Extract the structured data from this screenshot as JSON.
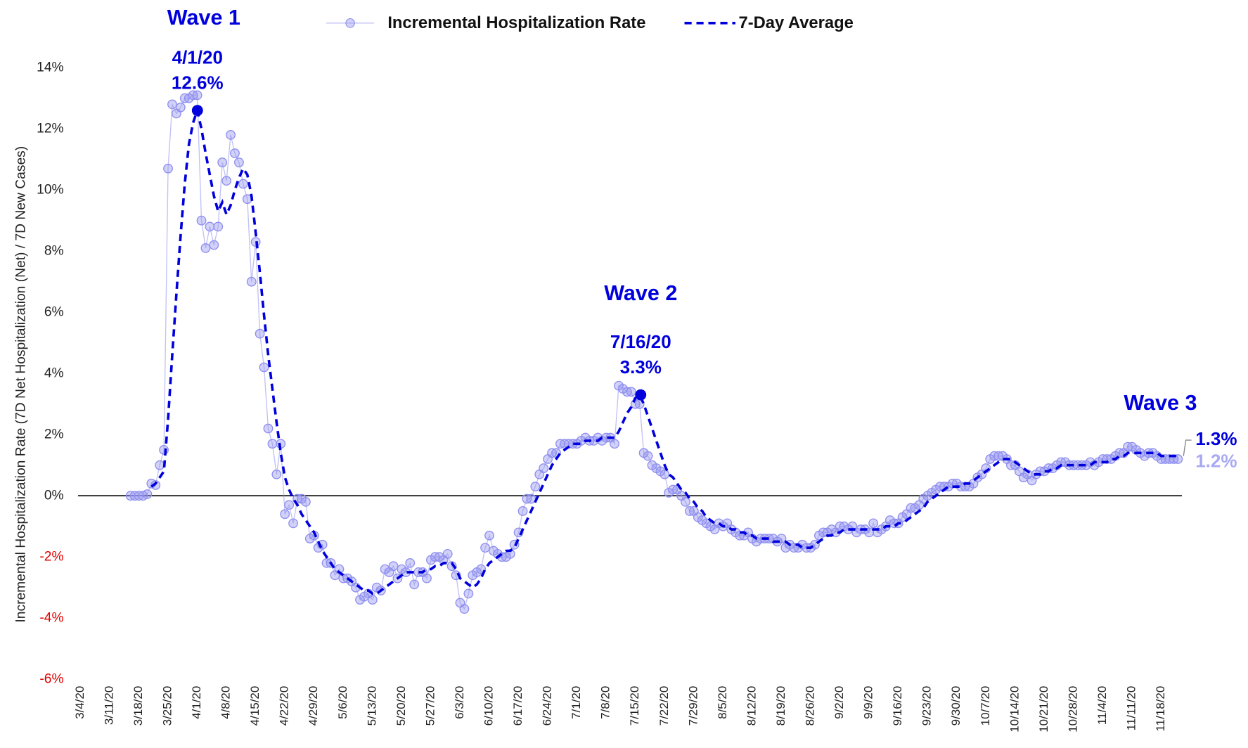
{
  "chart_data": {
    "type": "line",
    "y_label": "Incremental Hospitalization Rate (7D Net Hospitalization (Net) / 7D New Cases)",
    "wave_labels": [
      "Wave 1",
      "Wave 2",
      "Wave 3"
    ],
    "callouts": [
      {
        "date": "4/1/20",
        "value": 12.6,
        "label": "12.6%"
      },
      {
        "date": "7/16/20",
        "value": 3.3,
        "label": "3.3%"
      }
    ],
    "end_labels": [
      {
        "value": 1.3,
        "label": "1.3%",
        "color": "#0000dd"
      },
      {
        "value": 1.2,
        "label": "1.2%",
        "color": "#a9a9f5"
      }
    ],
    "ylim": [
      -6,
      14
    ],
    "yticks": [
      {
        "value": -6,
        "label": "-6%"
      },
      {
        "value": -4,
        "label": "-4%"
      },
      {
        "value": -2,
        "label": "-2%"
      },
      {
        "value": 0,
        "label": "0%"
      },
      {
        "value": 2,
        "label": "2%"
      },
      {
        "value": 4,
        "label": "4%"
      },
      {
        "value": 6,
        "label": "6%"
      },
      {
        "value": 8,
        "label": "8%"
      },
      {
        "value": 10,
        "label": "10%"
      },
      {
        "value": 12,
        "label": "12%"
      },
      {
        "value": 14,
        "label": "14%"
      }
    ],
    "negative_tick_color": "#e00000",
    "grid": false,
    "legend": "top",
    "categories": [
      "3/4/20",
      null,
      null,
      null,
      null,
      null,
      null,
      "3/11/20",
      null,
      null,
      null,
      null,
      null,
      null,
      "3/18/20",
      null,
      null,
      null,
      null,
      null,
      null,
      "3/25/20",
      null,
      null,
      null,
      null,
      null,
      null,
      "4/1/20",
      null,
      null,
      null,
      null,
      null,
      null,
      "4/8/20",
      null,
      null,
      null,
      null,
      null,
      null,
      "4/15/20",
      null,
      null,
      null,
      null,
      null,
      null,
      "4/22/20",
      null,
      null,
      null,
      null,
      null,
      null,
      "4/29/20",
      null,
      null,
      null,
      null,
      null,
      null,
      "5/6/20",
      null,
      null,
      null,
      null,
      null,
      null,
      "5/13/20",
      null,
      null,
      null,
      null,
      null,
      null,
      "5/20/20",
      null,
      null,
      null,
      null,
      null,
      null,
      "5/27/20",
      null,
      null,
      null,
      null,
      null,
      null,
      "6/3/20",
      null,
      null,
      null,
      null,
      null,
      null,
      "6/10/20",
      null,
      null,
      null,
      null,
      null,
      null,
      "6/17/20",
      null,
      null,
      null,
      null,
      null,
      null,
      "6/24/20",
      null,
      null,
      null,
      null,
      null,
      null,
      "7/1/20",
      null,
      null,
      null,
      null,
      null,
      null,
      "7/8/20",
      null,
      null,
      null,
      null,
      null,
      null,
      "7/15/20",
      null,
      null,
      null,
      null,
      null,
      null,
      "7/22/20",
      null,
      null,
      null,
      null,
      null,
      null,
      "7/29/20",
      null,
      null,
      null,
      null,
      null,
      null,
      "8/5/20",
      null,
      null,
      null,
      null,
      null,
      null,
      "8/12/20",
      null,
      null,
      null,
      null,
      null,
      null,
      "8/19/20",
      null,
      null,
      null,
      null,
      null,
      null,
      "8/26/20",
      null,
      null,
      null,
      null,
      null,
      null,
      "9/2/20",
      null,
      null,
      null,
      null,
      null,
      null,
      "9/9/20",
      null,
      null,
      null,
      null,
      null,
      null,
      "9/16/20",
      null,
      null,
      null,
      null,
      null,
      null,
      "9/23/20",
      null,
      null,
      null,
      null,
      null,
      null,
      "9/30/20",
      null,
      null,
      null,
      null,
      null,
      null,
      "10/7/20",
      null,
      null,
      null,
      null,
      null,
      null,
      "10/14/20",
      null,
      null,
      null,
      null,
      null,
      null,
      "10/21/20",
      null,
      null,
      null,
      null,
      null,
      null,
      "10/28/20",
      null,
      null,
      null,
      null,
      null,
      null,
      "11/4/20",
      null,
      null,
      null,
      null,
      null,
      null,
      "11/11/20",
      null,
      null,
      null,
      null,
      null,
      null,
      "11/18/20",
      null,
      null,
      null,
      null
    ],
    "series": [
      {
        "name": "Incremental Hospitalization Rate",
        "color": "#8f8fef",
        "style": "markers",
        "values": [
          null,
          null,
          null,
          null,
          null,
          null,
          null,
          null,
          null,
          null,
          null,
          null,
          0,
          0,
          0,
          0,
          0.05,
          0.4,
          0.35,
          1.0,
          1.5,
          10.7,
          12.8,
          12.5,
          12.7,
          13.0,
          13.0,
          13.1,
          13.1,
          9.0,
          8.1,
          8.8,
          8.2,
          8.8,
          10.9,
          10.3,
          11.8,
          11.2,
          10.9,
          10.2,
          9.7,
          7.0,
          8.3,
          5.3,
          4.2,
          2.2,
          1.7,
          0.7,
          1.7,
          -0.6,
          -0.3,
          -0.9,
          -0.1,
          -0.1,
          -0.2,
          -1.4,
          -1.3,
          -1.7,
          -1.6,
          -2.2,
          -2.2,
          -2.6,
          -2.4,
          -2.7,
          -2.7,
          -2.8,
          -3.0,
          -3.4,
          -3.3,
          -3.2,
          -3.4,
          -3.0,
          -3.1,
          -2.4,
          -2.5,
          -2.3,
          -2.7,
          -2.4,
          -2.5,
          -2.2,
          -2.9,
          -2.5,
          -2.5,
          -2.7,
          -2.1,
          -2.0,
          -2.0,
          -2.1,
          -1.9,
          -2.3,
          -2.6,
          -3.5,
          -3.7,
          -3.2,
          -2.6,
          -2.5,
          -2.4,
          -1.7,
          -1.3,
          -1.8,
          -1.9,
          -2.0,
          -2.0,
          -1.9,
          -1.6,
          -1.2,
          -0.5,
          -0.1,
          -0.1,
          0.3,
          0.7,
          0.9,
          1.2,
          1.4,
          1.4,
          1.7,
          1.7,
          1.7,
          1.7,
          1.7,
          1.8,
          1.9,
          1.8,
          1.8,
          1.9,
          1.8,
          1.9,
          1.9,
          1.7,
          3.6,
          3.5,
          3.4,
          3.4,
          3.0,
          3.0,
          1.4,
          1.3,
          1.0,
          0.9,
          0.8,
          0.7,
          0.1,
          0.2,
          0.2,
          0.0,
          -0.2,
          -0.5,
          -0.5,
          -0.7,
          -0.8,
          -0.9,
          -1.0,
          -1.1,
          -0.9,
          -1.0,
          -0.9,
          -1.1,
          -1.2,
          -1.3,
          -1.3,
          -1.2,
          -1.4,
          -1.5,
          -1.4,
          -1.4,
          -1.4,
          -1.4,
          -1.5,
          -1.4,
          -1.7,
          -1.6,
          -1.7,
          -1.7,
          -1.6,
          -1.7,
          -1.7,
          -1.6,
          -1.3,
          -1.2,
          -1.2,
          -1.1,
          -1.2,
          -1.0,
          -1.0,
          -1.1,
          -1.0,
          -1.2,
          -1.1,
          -1.1,
          -1.2,
          -0.9,
          -1.2,
          -1.1,
          -1.0,
          -0.8,
          -0.9,
          -0.9,
          -0.7,
          -0.6,
          -0.4,
          -0.4,
          -0.3,
          -0.1,
          0.0,
          0.1,
          0.2,
          0.3,
          0.3,
          0.3,
          0.4,
          0.4,
          0.3,
          0.3,
          0.3,
          0.4,
          0.6,
          0.7,
          0.9,
          1.2,
          1.3,
          1.3,
          1.3,
          1.2,
          1.0,
          1.0,
          0.8,
          0.6,
          0.7,
          0.5,
          0.7,
          0.8,
          0.8,
          0.9,
          0.9,
          1.0,
          1.1,
          1.1,
          1.0,
          1.0,
          1.0,
          1.0,
          1.0,
          1.1,
          1.0,
          1.1,
          1.2,
          1.2,
          1.2,
          1.3,
          1.4,
          1.4,
          1.6,
          1.6,
          1.5,
          1.4,
          1.3,
          1.4,
          1.4,
          1.3,
          1.2,
          1.2,
          1.2,
          1.2,
          1.2
        ]
      },
      {
        "name": "7-Day Average",
        "color": "#0000dd",
        "style": "dashed",
        "values": [
          null,
          null,
          null,
          null,
          null,
          null,
          null,
          null,
          null,
          null,
          null,
          null,
          null,
          null,
          null,
          null,
          null,
          0.3,
          0.4,
          0.6,
          0.8,
          2.5,
          4.6,
          6.6,
          8.5,
          10.2,
          11.5,
          12.2,
          12.6,
          12.0,
          11.2,
          10.5,
          9.8,
          9.3,
          9.6,
          9.2,
          9.5,
          10.0,
          10.4,
          10.7,
          10.5,
          9.8,
          8.6,
          7.3,
          5.9,
          4.6,
          3.5,
          2.4,
          1.4,
          0.6,
          0.2,
          -0.1,
          -0.3,
          -0.6,
          -0.8,
          -1.0,
          -1.2,
          -1.5,
          -1.8,
          -2.0,
          -2.2,
          -2.4,
          -2.5,
          -2.6,
          -2.7,
          -2.8,
          -2.9,
          -3.0,
          -3.1,
          -3.1,
          -3.2,
          -3.2,
          -3.1,
          -3.0,
          -2.9,
          -2.8,
          -2.7,
          -2.6,
          -2.5,
          -2.5,
          -2.5,
          -2.5,
          -2.5,
          -2.4,
          -2.4,
          -2.3,
          -2.3,
          -2.2,
          -2.2,
          -2.2,
          -2.4,
          -2.7,
          -2.8,
          -2.9,
          -3.0,
          -2.9,
          -2.7,
          -2.4,
          -2.2,
          -2.1,
          -2.0,
          -1.9,
          -1.8,
          -1.8,
          -1.7,
          -1.4,
          -1.1,
          -0.8,
          -0.5,
          -0.2,
          0.1,
          0.4,
          0.7,
          1.0,
          1.2,
          1.4,
          1.5,
          1.6,
          1.7,
          1.7,
          1.7,
          1.8,
          1.8,
          1.8,
          1.8,
          1.9,
          1.9,
          1.9,
          1.9,
          2.1,
          2.4,
          2.7,
          2.9,
          3.2,
          3.3,
          3.0,
          2.6,
          2.2,
          1.8,
          1.4,
          1.0,
          0.7,
          0.6,
          0.4,
          0.2,
          0.1,
          -0.1,
          -0.2,
          -0.4,
          -0.5,
          -0.7,
          -0.8,
          -0.9,
          -0.9,
          -1.0,
          -1.0,
          -1.1,
          -1.1,
          -1.2,
          -1.2,
          -1.3,
          -1.3,
          -1.4,
          -1.4,
          -1.4,
          -1.4,
          -1.5,
          -1.5,
          -1.5,
          -1.5,
          -1.6,
          -1.6,
          -1.6,
          -1.7,
          -1.7,
          -1.7,
          -1.6,
          -1.5,
          -1.4,
          -1.3,
          -1.3,
          -1.2,
          -1.2,
          -1.1,
          -1.1,
          -1.1,
          -1.1,
          -1.1,
          -1.1,
          -1.1,
          -1.1,
          -1.1,
          -1.1,
          -1.0,
          -1.0,
          -1.0,
          -0.9,
          -0.9,
          -0.8,
          -0.7,
          -0.6,
          -0.5,
          -0.4,
          -0.2,
          -0.1,
          0.0,
          0.1,
          0.2,
          0.3,
          0.3,
          0.3,
          0.3,
          0.4,
          0.4,
          0.5,
          0.6,
          0.7,
          0.8,
          0.9,
          1.0,
          1.1,
          1.2,
          1.2,
          1.2,
          1.1,
          1.0,
          0.9,
          0.8,
          0.7,
          0.7,
          0.7,
          0.8,
          0.8,
          0.9,
          0.9,
          1.0,
          1.0,
          1.0,
          1.0,
          1.0,
          1.0,
          1.0,
          1.0,
          1.1,
          1.1,
          1.1,
          1.1,
          1.2,
          1.2,
          1.3,
          1.3,
          1.4,
          1.4,
          1.4,
          1.4,
          1.4,
          1.4,
          1.4,
          1.4,
          1.3,
          1.3,
          1.3,
          1.3,
          1.3
        ]
      }
    ]
  }
}
